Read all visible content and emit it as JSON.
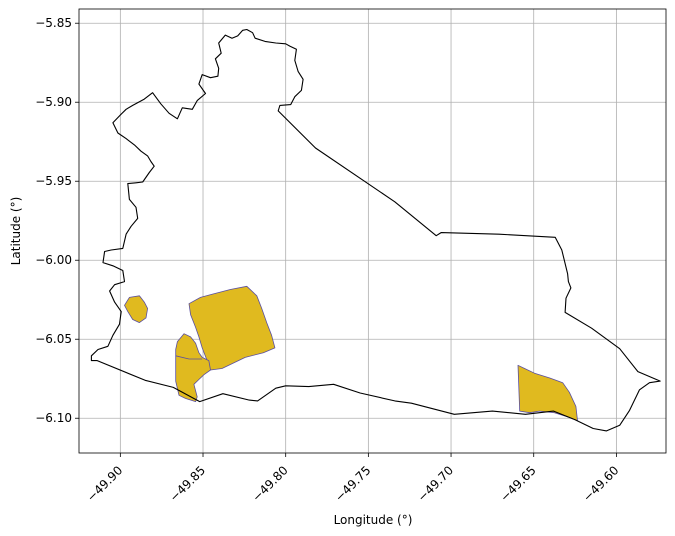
{
  "chart_data": {
    "type": "map",
    "xlabel": "Longitude (°)",
    "ylabel": "Latitude (°)",
    "xlim": [
      -49.925,
      -49.57
    ],
    "ylim": [
      -6.122,
      -5.841
    ],
    "x_ticks": [
      -49.9,
      -49.85,
      -49.8,
      -49.75,
      -49.7,
      -49.65,
      -49.6
    ],
    "x_tick_labels": [
      "−49.90",
      "−49.85",
      "−49.80",
      "−49.75",
      "−49.70",
      "−49.65",
      "−49.60"
    ],
    "y_ticks": [
      -5.85,
      -5.9,
      -5.95,
      -6.0,
      -6.05,
      -6.1
    ],
    "y_tick_labels": [
      "−5.85",
      "−5.90",
      "−5.95",
      "−6.00",
      "−6.05",
      "−6.10"
    ],
    "grid": true,
    "boundary_color": "#000000",
    "fill_color": "#e0ba1f",
    "patch_edge_color": "#5a4fa0",
    "boundary": [
      [
        -49.9175,
        -6.0635
      ],
      [
        -49.914,
        -6.0635
      ],
      [
        -49.885,
        -6.076
      ],
      [
        -49.868,
        -6.0805
      ],
      [
        -49.852,
        -6.0895
      ],
      [
        -49.838,
        -6.0845
      ],
      [
        -49.822,
        -6.0885
      ],
      [
        -49.817,
        -6.089
      ],
      [
        -49.806,
        -6.081
      ],
      [
        -49.8,
        -6.0795
      ],
      [
        -49.786,
        -6.08
      ],
      [
        -49.771,
        -6.0785
      ],
      [
        -49.755,
        -6.084
      ],
      [
        -49.734,
        -6.089
      ],
      [
        -49.724,
        -6.0905
      ],
      [
        -49.698,
        -6.0975
      ],
      [
        -49.675,
        -6.0955
      ],
      [
        -49.655,
        -6.0975
      ],
      [
        -49.638,
        -6.0955
      ],
      [
        -49.625,
        -6.101
      ],
      [
        -49.614,
        -6.1065
      ],
      [
        -49.606,
        -6.108
      ],
      [
        -49.598,
        -6.1045
      ],
      [
        -49.592,
        -6.095
      ],
      [
        -49.586,
        -6.082
      ],
      [
        -49.58,
        -6.0775
      ],
      [
        -49.5735,
        -6.0765
      ],
      [
        -49.587,
        -6.0705
      ],
      [
        -49.598,
        -6.056
      ],
      [
        -49.615,
        -6.043
      ],
      [
        -49.631,
        -6.033
      ],
      [
        -49.6305,
        -6.024
      ],
      [
        -49.6275,
        -6.0175
      ],
      [
        -49.629,
        -6.0135
      ],
      [
        -49.6295,
        -6.0085
      ],
      [
        -49.633,
        -5.9935
      ],
      [
        -49.637,
        -5.9855
      ],
      [
        -49.671,
        -5.9835
      ],
      [
        -49.706,
        -5.9825
      ],
      [
        -49.709,
        -5.9845
      ],
      [
        -49.734,
        -5.963
      ],
      [
        -49.782,
        -5.929
      ],
      [
        -49.8045,
        -5.9055
      ],
      [
        -49.8035,
        -5.902
      ],
      [
        -49.797,
        -5.9015
      ],
      [
        -49.7945,
        -5.8965
      ],
      [
        -49.7905,
        -5.8925
      ],
      [
        -49.7895,
        -5.8855
      ],
      [
        -49.7925,
        -5.8805
      ],
      [
        -49.7945,
        -5.8735
      ],
      [
        -49.7935,
        -5.8665
      ],
      [
        -49.7975,
        -5.8645
      ],
      [
        -49.8,
        -5.863
      ],
      [
        -49.806,
        -5.8625
      ],
      [
        -49.8125,
        -5.8615
      ],
      [
        -49.8185,
        -5.8595
      ],
      [
        -49.82,
        -5.856
      ],
      [
        -49.8235,
        -5.854
      ],
      [
        -49.826,
        -5.8545
      ],
      [
        -49.829,
        -5.858
      ],
      [
        -49.8325,
        -5.8595
      ],
      [
        -49.8365,
        -5.8575
      ],
      [
        -49.8405,
        -5.8625
      ],
      [
        -49.839,
        -5.869
      ],
      [
        -49.8425,
        -5.8725
      ],
      [
        -49.8405,
        -5.8785
      ],
      [
        -49.841,
        -5.8835
      ],
      [
        -49.8455,
        -5.8845
      ],
      [
        -49.8505,
        -5.8825
      ],
      [
        -49.8525,
        -5.8885
      ],
      [
        -49.8485,
        -5.8945
      ],
      [
        -49.8535,
        -5.899
      ],
      [
        -49.8565,
        -5.9045
      ],
      [
        -49.8625,
        -5.9035
      ],
      [
        -49.8655,
        -5.9105
      ],
      [
        -49.8705,
        -5.907
      ],
      [
        -49.8755,
        -5.901
      ],
      [
        -49.8805,
        -5.894
      ],
      [
        -49.8855,
        -5.898
      ],
      [
        -49.8925,
        -5.902
      ],
      [
        -49.8965,
        -5.9045
      ],
      [
        -49.8995,
        -5.9075
      ],
      [
        -49.9045,
        -5.913
      ],
      [
        -49.9015,
        -5.9195
      ],
      [
        -49.8965,
        -5.923
      ],
      [
        -49.8915,
        -5.927
      ],
      [
        -49.8875,
        -5.931
      ],
      [
        -49.8835,
        -5.934
      ],
      [
        -49.8815,
        -5.9375
      ],
      [
        -49.8795,
        -5.9405
      ],
      [
        -49.8825,
        -5.9445
      ],
      [
        -49.8865,
        -5.9505
      ],
      [
        -49.8905,
        -5.951
      ],
      [
        -49.8955,
        -5.9515
      ],
      [
        -49.8945,
        -5.9615
      ],
      [
        -49.8905,
        -5.9665
      ],
      [
        -49.8895,
        -5.9735
      ],
      [
        -49.8935,
        -5.9785
      ],
      [
        -49.8965,
        -5.9835
      ],
      [
        -49.8985,
        -5.9925
      ],
      [
        -49.9055,
        -5.9935
      ],
      [
        -49.9095,
        -5.9945
      ],
      [
        -49.9105,
        -6.0015
      ],
      [
        -49.9045,
        -6.0035
      ],
      [
        -49.8985,
        -6.0065
      ],
      [
        -49.8975,
        -6.0135
      ],
      [
        -49.9035,
        -6.0155
      ],
      [
        -49.9065,
        -6.0195
      ],
      [
        -49.9035,
        -6.0265
      ],
      [
        -49.8995,
        -6.0325
      ],
      [
        -49.9005,
        -6.0405
      ],
      [
        -49.9045,
        -6.0475
      ],
      [
        -49.9075,
        -6.0545
      ],
      [
        -49.9135,
        -6.0565
      ],
      [
        -49.9175,
        -6.0605
      ],
      [
        -49.9175,
        -6.0635
      ]
    ],
    "protected_areas": [
      {
        "points": [
          [
            -49.8235,
            -6.0165
          ],
          [
            -49.8335,
            -6.0185
          ],
          [
            -49.8445,
            -6.0215
          ],
          [
            -49.8515,
            -6.0235
          ],
          [
            -49.8585,
            -6.0275
          ],
          [
            -49.8575,
            -6.0345
          ],
          [
            -49.8545,
            -6.0425
          ],
          [
            -49.8525,
            -6.0485
          ],
          [
            -49.8505,
            -6.0555
          ],
          [
            -49.8475,
            -6.0635
          ],
          [
            -49.8455,
            -6.0695
          ],
          [
            -49.8385,
            -6.0685
          ],
          [
            -49.8305,
            -6.0645
          ],
          [
            -49.8245,
            -6.0615
          ],
          [
            -49.8135,
            -6.0585
          ],
          [
            -49.8065,
            -6.0555
          ],
          [
            -49.8085,
            -6.0475
          ],
          [
            -49.8115,
            -6.0395
          ],
          [
            -49.8145,
            -6.0305
          ],
          [
            -49.8175,
            -6.0225
          ]
        ]
      },
      {
        "points": [
          [
            -49.8655,
            -6.0515
          ],
          [
            -49.8615,
            -6.0465
          ],
          [
            -49.8575,
            -6.0485
          ],
          [
            -49.8545,
            -6.0525
          ],
          [
            -49.8525,
            -6.0585
          ],
          [
            -49.8505,
            -6.0615
          ],
          [
            -49.8465,
            -6.0635
          ],
          [
            -49.8455,
            -6.0695
          ],
          [
            -49.8495,
            -6.0725
          ],
          [
            -49.8525,
            -6.0755
          ],
          [
            -49.8555,
            -6.0785
          ],
          [
            -49.8535,
            -6.0865
          ],
          [
            -49.8545,
            -6.0895
          ],
          [
            -49.8605,
            -6.0875
          ],
          [
            -49.8645,
            -6.0855
          ],
          [
            -49.8665,
            -6.0765
          ],
          [
            -49.8665,
            -6.0665
          ],
          [
            -49.8665,
            -6.0565
          ]
        ]
      },
      {
        "points": [
          [
            -49.8975,
            -6.0285
          ],
          [
            -49.8945,
            -6.0235
          ],
          [
            -49.8885,
            -6.0225
          ],
          [
            -49.8855,
            -6.0265
          ],
          [
            -49.8835,
            -6.0305
          ],
          [
            -49.8845,
            -6.0365
          ],
          [
            -49.8885,
            -6.0395
          ],
          [
            -49.8925,
            -6.0375
          ],
          [
            -49.8955,
            -6.0325
          ]
        ]
      },
      {
        "points": [
          [
            -49.6595,
            -6.0665
          ],
          [
            -49.6555,
            -6.0685
          ],
          [
            -49.6495,
            -6.0715
          ],
          [
            -49.6405,
            -6.0745
          ],
          [
            -49.6325,
            -6.0775
          ],
          [
            -49.6285,
            -6.0835
          ],
          [
            -49.6245,
            -6.0925
          ],
          [
            -49.6235,
            -6.1015
          ],
          [
            -49.6285,
            -6.0995
          ],
          [
            -49.6375,
            -6.0965
          ],
          [
            -49.6465,
            -6.0955
          ],
          [
            -49.6525,
            -6.0965
          ],
          [
            -49.6585,
            -6.0955
          ]
        ]
      }
    ],
    "patch_divider": [
      [
        -49.8665,
        -6.0605
      ],
      [
        -49.8585,
        -6.0625
      ],
      [
        -49.8505,
        -6.0625
      ]
    ]
  }
}
